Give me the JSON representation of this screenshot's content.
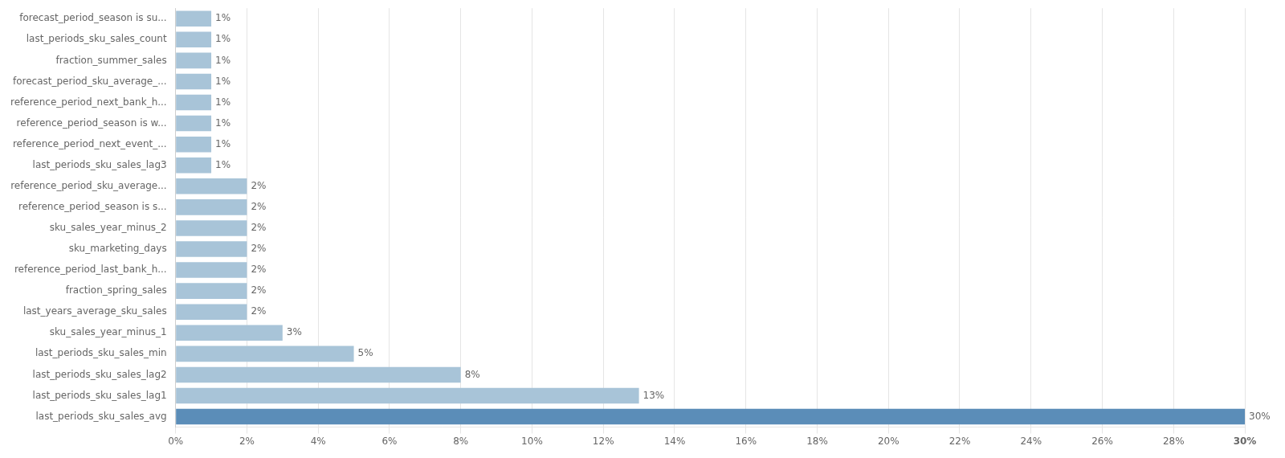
{
  "chart_data": {
    "type": "bar",
    "orientation": "horizontal",
    "categories": [
      "forecast_period_season is su...",
      "last_periods_sku_sales_count",
      "fraction_summer_sales",
      "forecast_period_sku_average_...",
      "reference_period_next_bank_h...",
      "reference_period_season is w...",
      "reference_period_next_event_...",
      "last_periods_sku_sales_lag3",
      "reference_period_sku_average...",
      "reference_period_season is s...",
      "sku_sales_year_minus_2",
      "sku_marketing_days",
      "reference_period_last_bank_h...",
      "fraction_spring_sales",
      "last_years_average_sku_sales",
      "sku_sales_year_minus_1",
      "last_periods_sku_sales_min",
      "last_periods_sku_sales_lag2",
      "last_periods_sku_sales_lag1",
      "last_periods_sku_sales_avg"
    ],
    "values": [
      1,
      1,
      1,
      1,
      1,
      1,
      1,
      1,
      2,
      2,
      2,
      2,
      2,
      2,
      2,
      3,
      5,
      8,
      13,
      30
    ],
    "value_labels": [
      "1%",
      "1%",
      "1%",
      "1%",
      "1%",
      "1%",
      "1%",
      "1%",
      "2%",
      "2%",
      "2%",
      "2%",
      "2%",
      "2%",
      "2%",
      "3%",
      "5%",
      "8%",
      "13%",
      "30%"
    ],
    "data_labels": true,
    "colors": [
      "#a8c4d8",
      "#a8c4d8",
      "#a8c4d8",
      "#a8c4d8",
      "#a8c4d8",
      "#a8c4d8",
      "#a8c4d8",
      "#a8c4d8",
      "#a8c4d8",
      "#a8c4d8",
      "#a8c4d8",
      "#a8c4d8",
      "#a8c4d8",
      "#a8c4d8",
      "#a8c4d8",
      "#a8c4d8",
      "#a8c4d8",
      "#a8c4d8",
      "#a8c4d8",
      "#5b8db8"
    ],
    "xlim": [
      0,
      30
    ],
    "xticks": [
      {
        "value": 0,
        "label": "0%"
      },
      {
        "value": 2,
        "label": "2%"
      },
      {
        "value": 4,
        "label": "4%"
      },
      {
        "value": 6,
        "label": "6%"
      },
      {
        "value": 8,
        "label": "8%"
      },
      {
        "value": 10,
        "label": "10%"
      },
      {
        "value": 12,
        "label": "12%"
      },
      {
        "value": 14,
        "label": "14%"
      },
      {
        "value": 16,
        "label": "16%"
      },
      {
        "value": 18,
        "label": "18%"
      },
      {
        "value": 20,
        "label": "20%"
      },
      {
        "value": 22,
        "label": "22%"
      },
      {
        "value": 24,
        "label": "24%"
      },
      {
        "value": 26,
        "label": "26%"
      },
      {
        "value": 28,
        "label": "28%"
      },
      {
        "value": 30,
        "label": "30%"
      }
    ],
    "grid": true
  }
}
